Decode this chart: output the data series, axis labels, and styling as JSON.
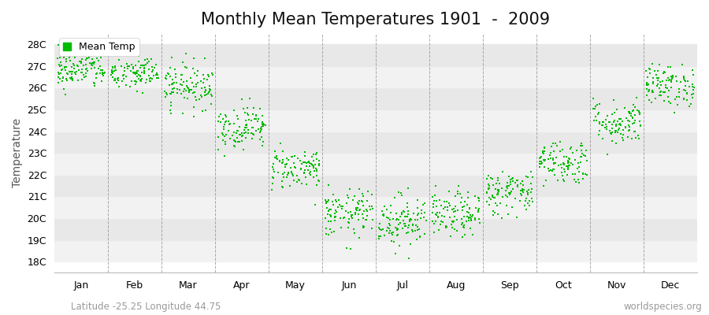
{
  "title": "Monthly Mean Temperatures 1901  -  2009",
  "ylabel": "Temperature",
  "xlabel_months": [
    "Jan",
    "Feb",
    "Mar",
    "Apr",
    "May",
    "Jun",
    "Jul",
    "Aug",
    "Sep",
    "Oct",
    "Nov",
    "Dec"
  ],
  "ytick_labels": [
    "18C",
    "19C",
    "20C",
    "21C",
    "22C",
    "23C",
    "24C",
    "25C",
    "26C",
    "27C",
    "28C"
  ],
  "ytick_values": [
    18,
    19,
    20,
    21,
    22,
    23,
    24,
    25,
    26,
    27,
    28
  ],
  "ylim": [
    17.5,
    28.5
  ],
  "mean_temps": [
    26.8,
    26.65,
    26.1,
    24.2,
    22.3,
    20.2,
    19.9,
    20.15,
    21.2,
    22.6,
    24.4,
    26.1
  ],
  "spread": [
    0.42,
    0.42,
    0.52,
    0.5,
    0.48,
    0.55,
    0.6,
    0.52,
    0.52,
    0.52,
    0.52,
    0.48
  ],
  "n_years": 109,
  "dot_color": "#00bb00",
  "dot_size": 3,
  "bg_color": "#ffffff",
  "band_colors": [
    "#f2f2f2",
    "#e8e8e8"
  ],
  "grid_color": "#888888",
  "legend_label": "Mean Temp",
  "footnote_left": "Latitude -25.25 Longitude 44.75",
  "footnote_right": "worldspecies.org",
  "title_fontsize": 15,
  "axis_label_fontsize": 10,
  "tick_fontsize": 9,
  "footnote_fontsize": 8.5
}
